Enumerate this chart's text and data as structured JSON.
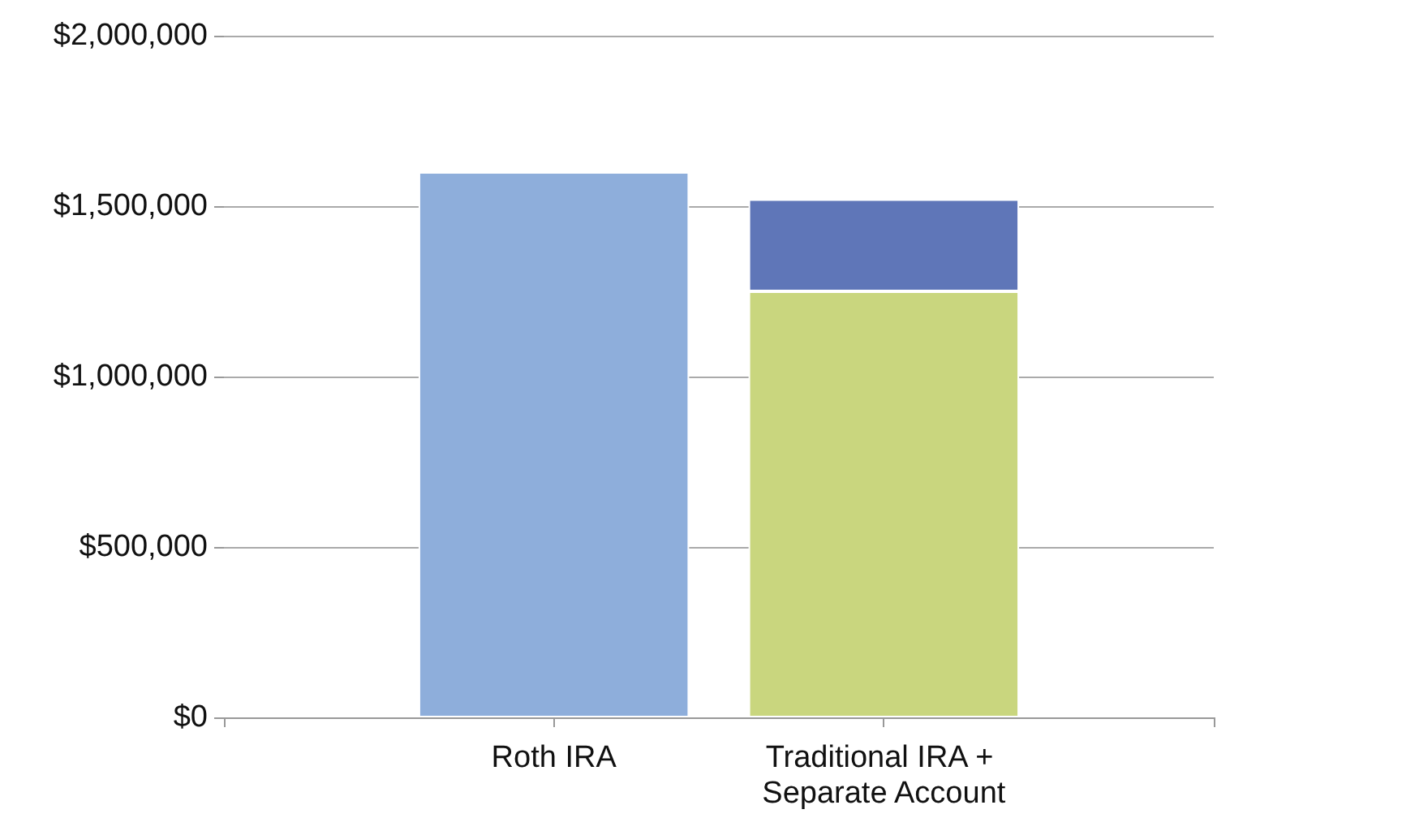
{
  "chart_data": {
    "type": "bar",
    "stacked": true,
    "categories": [
      null,
      "Roth IRA",
      "Traditional IRA + Separate Account",
      null
    ],
    "series": [
      {
        "color": "#8eaedb",
        "values": [
          null,
          1600000,
          null,
          null
        ]
      },
      {
        "color": "#c9d67e",
        "values": [
          null,
          null,
          1250000,
          null
        ]
      },
      {
        "color": "#5f76b8",
        "values": [
          null,
          null,
          270000,
          null
        ]
      }
    ],
    "ylim": [
      0,
      2000000
    ],
    "yticks": [
      {
        "value": 0,
        "label": "$0"
      },
      {
        "value": 500000,
        "label": "$500,000"
      },
      {
        "value": 1000000,
        "label": "$1,000,000"
      },
      {
        "value": 1500000,
        "label": "$1,500,000"
      },
      {
        "value": 2000000,
        "label": "$2,000,000"
      }
    ],
    "grid": "y"
  }
}
